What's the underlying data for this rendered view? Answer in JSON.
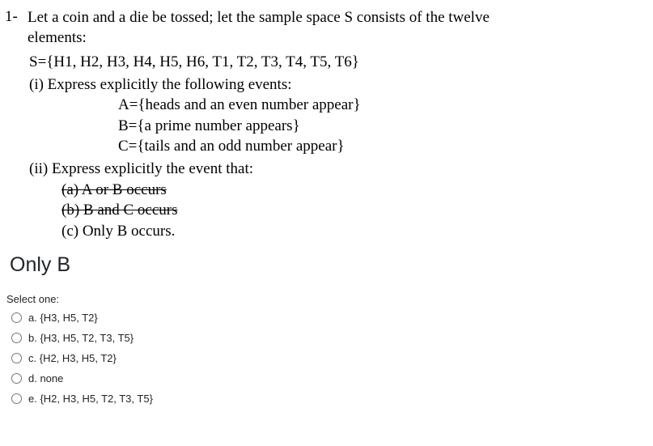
{
  "question": {
    "number": "1-",
    "intro_line1": "Let a coin and a die be tossed; let the sample space S consists of the twelve",
    "intro_line2": "elements:",
    "sample_space": "S={H1, H2, H3, H4, H5, H6, T1, T2, T3, T4, T5, T6}",
    "part_i_label": "(i) Express explicitly the following events:",
    "event_a": "A={heads and an even number appear}",
    "event_b": "B={a prime number appears}",
    "event_c": "C={tails and an odd number appear}",
    "part_ii_label": "(ii)  Express explicitly the event that:",
    "sub_a": "(a)  A or B occurs",
    "sub_b": "(b)  B and C occurs",
    "sub_c": "(c)  Only B occurs."
  },
  "heading": "Only B",
  "select_label": "Select one:",
  "options": {
    "a": "a. {H3, H5, T2}",
    "b": "b. {H3, H5, T2, T3, T5}",
    "c": "c. {H2, H3, H5, T2}",
    "d": "d. none",
    "e": "e. {H2, H3, H5, T2, T3, T5}"
  },
  "styling": {
    "serif_font": "Times New Roman",
    "sans_font": "Arial",
    "question_fontsize": 19,
    "heading_fontsize": 25,
    "option_fontsize": 13,
    "text_color": "#000000",
    "ui_text_color": "#212529",
    "background_color": "#ffffff"
  }
}
